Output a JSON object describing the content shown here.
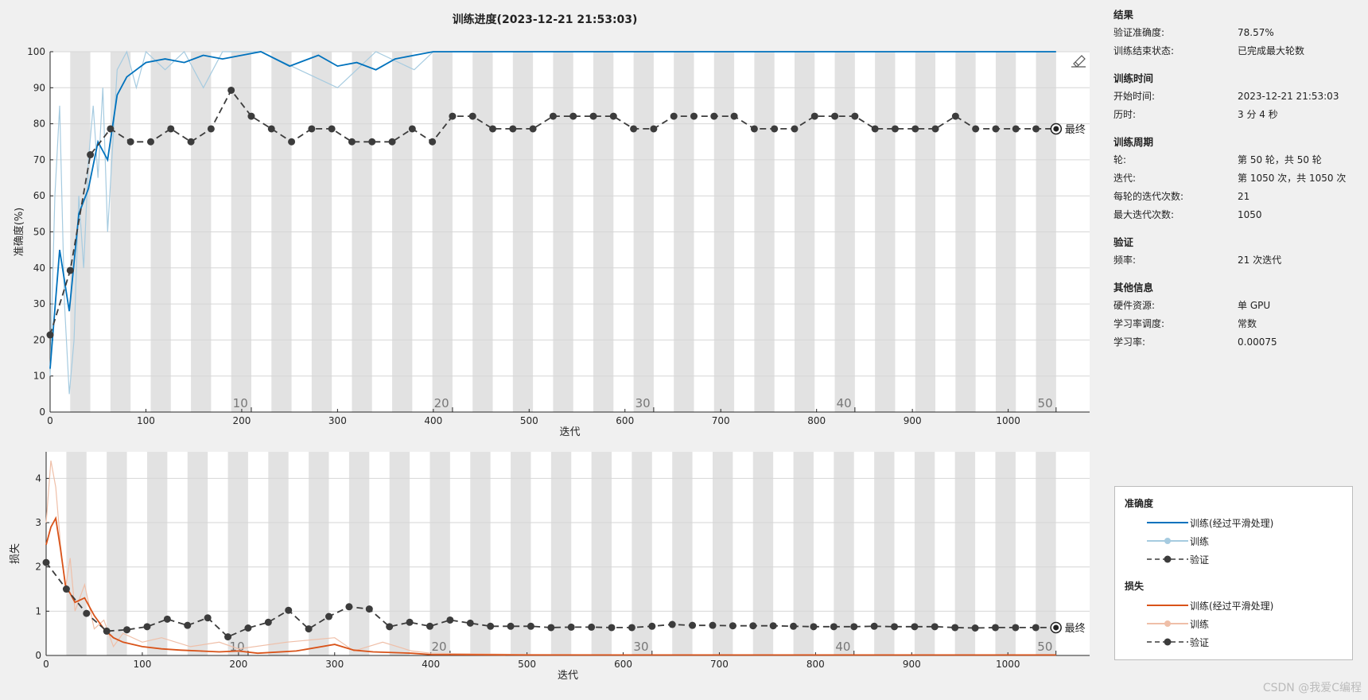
{
  "title": "训练进度(2023-12-21 21:53:03)",
  "colors": {
    "acc_smooth": "#0072bd",
    "acc_raw": "#a6cbe0",
    "loss_smooth": "#d95319",
    "loss_raw": "#efbfa8",
    "validation": "#3c3c3c",
    "stripe": "#e2e2e2"
  },
  "chart_data": [
    {
      "type": "line",
      "name": "accuracy",
      "xlabel": "迭代",
      "ylabel": "准确度(%)",
      "xlim": [
        0,
        1085
      ],
      "ylim": [
        0,
        100
      ],
      "xticks": [
        0,
        100,
        200,
        300,
        400,
        500,
        600,
        700,
        800,
        900,
        1000
      ],
      "yticks": [
        0,
        10,
        20,
        30,
        40,
        50,
        60,
        70,
        80,
        90,
        100
      ],
      "epoch_labels": [
        "10",
        "20",
        "30",
        "40",
        "50"
      ],
      "final_label": "最终",
      "series": [
        {
          "name": "训练(经过平滑处理)",
          "x": [
            0,
            10,
            20,
            30,
            40,
            50,
            60,
            70,
            80,
            90,
            100,
            120,
            140,
            160,
            180,
            200,
            220,
            250,
            280,
            300,
            320,
            340,
            360,
            380,
            400,
            500,
            600,
            700,
            800,
            900,
            1000,
            1050
          ],
          "values": [
            12,
            45,
            28,
            55,
            62,
            75,
            70,
            88,
            93,
            95,
            97,
            98,
            97,
            99,
            98,
            99,
            100,
            96,
            99,
            96,
            97,
            95,
            98,
            99,
            100,
            100,
            100,
            100,
            100,
            100,
            100,
            100
          ]
        },
        {
          "name": "训练",
          "x": [
            0,
            5,
            10,
            15,
            20,
            25,
            30,
            35,
            40,
            45,
            50,
            55,
            60,
            70,
            80,
            90,
            100,
            120,
            140,
            160,
            180,
            200,
            220,
            260,
            300,
            340,
            380,
            400,
            500,
            700,
            900,
            1050
          ],
          "values": [
            10,
            60,
            85,
            30,
            5,
            20,
            60,
            40,
            70,
            85,
            65,
            90,
            50,
            95,
            100,
            90,
            100,
            95,
            100,
            90,
            100,
            100,
            100,
            95,
            90,
            100,
            95,
            100,
            100,
            100,
            100,
            100
          ]
        },
        {
          "name": "验证",
          "x": [
            0,
            21,
            42,
            63,
            84,
            105,
            126,
            147,
            168,
            189,
            210,
            231,
            252,
            273,
            294,
            315,
            336,
            357,
            378,
            399,
            420,
            441,
            462,
            483,
            504,
            525,
            546,
            567,
            588,
            609,
            630,
            651,
            672,
            693,
            714,
            735,
            756,
            777,
            798,
            819,
            840,
            861,
            882,
            903,
            924,
            945,
            966,
            987,
            1008,
            1029,
            1050
          ],
          "values": [
            21.4,
            39.3,
            71.4,
            78.6,
            75,
            75,
            78.6,
            75,
            78.6,
            89.3,
            82.1,
            78.6,
            75,
            78.6,
            78.6,
            75,
            75,
            75,
            78.6,
            75,
            82.1,
            82.1,
            78.6,
            78.6,
            78.6,
            82.1,
            82.1,
            82.1,
            82.1,
            78.6,
            78.6,
            82.1,
            82.1,
            82.1,
            82.1,
            78.6,
            78.6,
            78.6,
            82.1,
            82.1,
            82.1,
            78.6,
            78.6,
            78.6,
            78.6,
            82.1,
            78.6,
            78.6,
            78.6,
            78.6,
            78.6
          ]
        }
      ]
    },
    {
      "type": "line",
      "name": "loss",
      "xlabel": "迭代",
      "ylabel": "损失",
      "xlim": [
        0,
        1085
      ],
      "ylim": [
        0,
        4.6
      ],
      "xticks": [
        0,
        100,
        200,
        300,
        400,
        500,
        600,
        700,
        800,
        900,
        1000
      ],
      "yticks": [
        0,
        1,
        2,
        3,
        4
      ],
      "epoch_labels": [
        "10",
        "20",
        "30",
        "40",
        "50"
      ],
      "final_label": "最终",
      "series": [
        {
          "name": "训练(经过平滑处理)",
          "x": [
            0,
            5,
            10,
            15,
            20,
            30,
            40,
            50,
            60,
            70,
            80,
            100,
            120,
            140,
            160,
            180,
            200,
            220,
            260,
            300,
            320,
            340,
            380,
            400,
            500,
            700,
            900,
            1050
          ],
          "values": [
            2.5,
            2.9,
            3.1,
            2.4,
            1.6,
            1.2,
            1.3,
            0.9,
            0.6,
            0.4,
            0.3,
            0.2,
            0.15,
            0.12,
            0.1,
            0.08,
            0.1,
            0.05,
            0.1,
            0.25,
            0.12,
            0.08,
            0.05,
            0.02,
            0.01,
            0.01,
            0.01,
            0.01
          ]
        },
        {
          "name": "训练",
          "x": [
            0,
            5,
            10,
            15,
            20,
            25,
            30,
            40,
            50,
            60,
            70,
            80,
            100,
            120,
            150,
            180,
            200,
            250,
            300,
            320,
            350,
            380,
            400,
            500,
            700,
            900,
            1050
          ],
          "values": [
            3.0,
            4.4,
            3.8,
            2.5,
            1.5,
            2.2,
            1.0,
            1.6,
            0.6,
            0.8,
            0.2,
            0.5,
            0.3,
            0.4,
            0.2,
            0.3,
            0.15,
            0.3,
            0.4,
            0.1,
            0.3,
            0.1,
            0.05,
            0.02,
            0.01,
            0.01,
            0.01
          ]
        },
        {
          "name": "验证",
          "x": [
            0,
            21,
            42,
            63,
            84,
            105,
            126,
            147,
            168,
            189,
            210,
            231,
            252,
            273,
            294,
            315,
            336,
            357,
            378,
            399,
            420,
            441,
            462,
            483,
            504,
            525,
            546,
            567,
            588,
            609,
            630,
            651,
            672,
            693,
            714,
            735,
            756,
            777,
            798,
            819,
            840,
            861,
            882,
            903,
            924,
            945,
            966,
            987,
            1008,
            1029,
            1050
          ],
          "values": [
            2.1,
            1.5,
            0.95,
            0.55,
            0.58,
            0.65,
            0.82,
            0.68,
            0.85,
            0.42,
            0.62,
            0.75,
            1.02,
            0.6,
            0.88,
            1.1,
            1.05,
            0.65,
            0.75,
            0.66,
            0.8,
            0.73,
            0.66,
            0.66,
            0.66,
            0.63,
            0.64,
            0.64,
            0.63,
            0.63,
            0.66,
            0.7,
            0.68,
            0.68,
            0.67,
            0.67,
            0.67,
            0.66,
            0.65,
            0.65,
            0.65,
            0.66,
            0.65,
            0.65,
            0.65,
            0.63,
            0.62,
            0.63,
            0.63,
            0.63,
            0.63
          ]
        }
      ]
    }
  ],
  "panel": {
    "sections": [
      {
        "header": "结果",
        "rows": [
          {
            "key": "验证准确度:",
            "value": "78.57%"
          },
          {
            "key": "训练结束状态:",
            "value": "已完成最大轮数"
          }
        ]
      },
      {
        "header": "训练时间",
        "rows": [
          {
            "key": "开始时间:",
            "value": "2023-12-21 21:53:03"
          },
          {
            "key": "历时:",
            "value": "3 分 4 秒"
          }
        ]
      },
      {
        "header": "训练周期",
        "rows": [
          {
            "key": "轮:",
            "value": "第 50 轮，共 50 轮"
          },
          {
            "key": "迭代:",
            "value": "第 1050 次，共 1050 次"
          },
          {
            "key": "每轮的迭代次数:",
            "value": "21"
          },
          {
            "key": "最大迭代次数:",
            "value": "1050"
          }
        ]
      },
      {
        "header": "验证",
        "rows": [
          {
            "key": "频率:",
            "value": "21 次迭代"
          }
        ]
      },
      {
        "header": "其他信息",
        "rows": [
          {
            "key": "硬件资源:",
            "value": "单 GPU"
          },
          {
            "key": "学习率调度:",
            "value": "常数"
          },
          {
            "key": "学习率:",
            "value": "0.00075"
          }
        ]
      }
    ]
  },
  "legend": {
    "acc_header": "准确度",
    "loss_header": "损失",
    "smooth_label": "训练(经过平滑处理)",
    "raw_label": "训练",
    "val_label": "验证"
  },
  "watermark": "CSDN @我爱C编程"
}
